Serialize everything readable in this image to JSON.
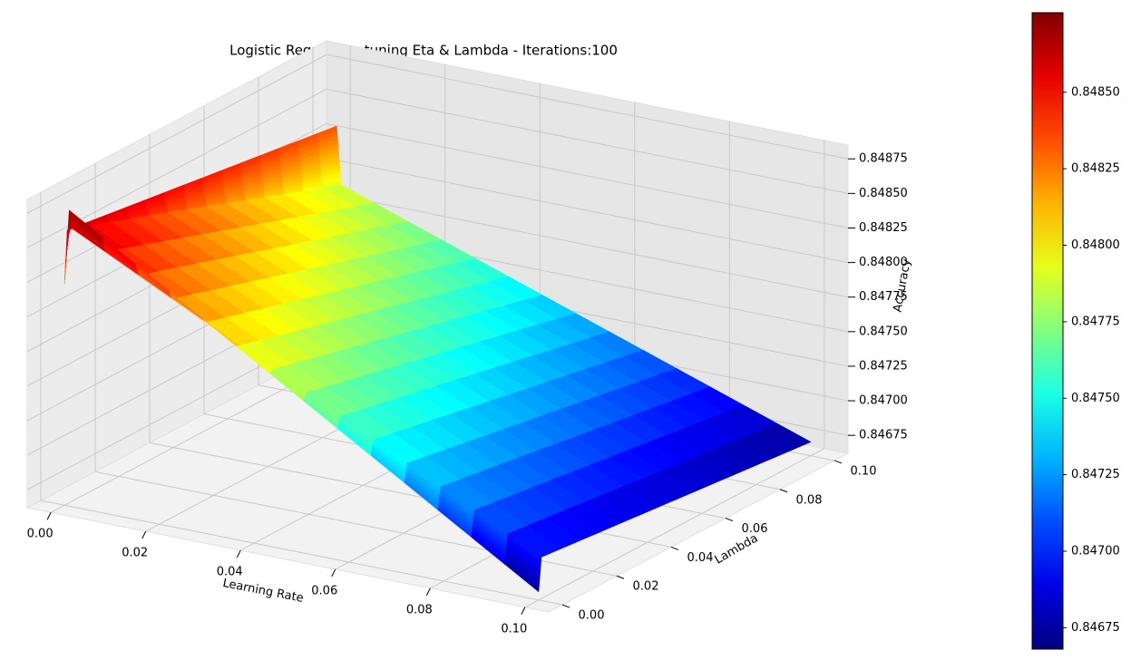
{
  "chart_data": {
    "type": "surface3d",
    "title": "Logistic Regression tuning Eta & Lambda - Iterations:100",
    "x_label": "Learning Rate",
    "y_label": "Lambda",
    "z_label": "Accuracy",
    "x": [
      0.0,
      0.001,
      0.1
    ],
    "y": [
      0.0,
      0.001,
      0.1
    ],
    "z": [
      [
        0.84822,
        0.84876,
        0.84668
      ],
      [
        0.8486,
        0.84862,
        0.84692
      ],
      [
        0.84832,
        0.8479,
        0.84672
      ]
    ],
    "colormap": "jet",
    "xlim": [
      -0.005,
      0.105
    ],
    "ylim": [
      -0.005,
      0.105
    ],
    "zlim": [
      0.84662,
      0.84885
    ],
    "xticks": [
      {
        "value": 0.0,
        "label": "0.00"
      },
      0.02,
      0.04,
      0.06,
      0.08,
      {
        "value": 0.1,
        "label": "0.10"
      }
    ],
    "yticks": [
      {
        "value": 0.0,
        "label": "0.00"
      },
      0.02,
      0.04,
      0.06,
      0.08,
      {
        "value": 0.1,
        "label": "0.10"
      }
    ],
    "zticks": [
      0.84675,
      {
        "value": 0.847,
        "label": "0.84700"
      },
      0.84725,
      {
        "value": 0.8475,
        "label": "0.84750"
      },
      0.84775,
      {
        "value": 0.848,
        "label": "0.84800"
      },
      0.84825,
      {
        "value": 0.8485,
        "label": "0.84850"
      },
      0.84875
    ],
    "colorbar_ticks": [
      0.84675,
      {
        "value": 0.847,
        "label": "0.84700"
      },
      0.84725,
      {
        "value": 0.8475,
        "label": "0.84750"
      },
      0.84775,
      {
        "value": 0.848,
        "label": "0.84800"
      },
      0.84825,
      {
        "value": 0.8485,
        "label": "0.84850"
      }
    ],
    "grid": true
  }
}
